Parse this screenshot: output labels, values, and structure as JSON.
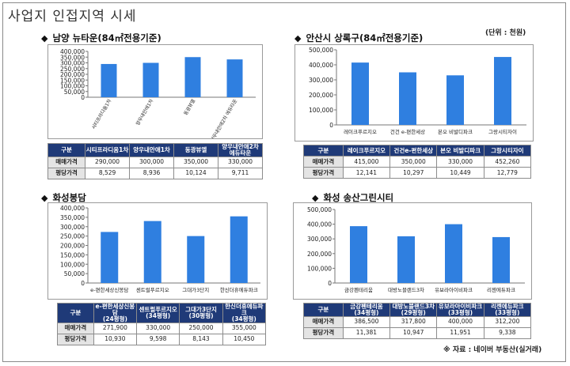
{
  "page": {
    "title": "사업지 인접지역 시세",
    "unit_note": "(단위 : 천원)",
    "source_note": "※ 자료 : 네이버 부동산(실거래)",
    "bar_color": "#2f7fe0",
    "header_color": "#1f3a78"
  },
  "chart_data": [
    {
      "type": "bar",
      "title": "남양 뉴타운(84㎡전용기준)",
      "categories": [
        "시티프라디움1차",
        "양우내안애1차",
        "동광뷰엘",
        "양우내안애2차 에듀타운"
      ],
      "values": [
        290000,
        300000,
        350000,
        330000
      ],
      "ylim": [
        0,
        400000
      ],
      "yticks": [
        "0",
        "50,000",
        "100,000",
        "150,000",
        "200,000",
        "250,000",
        "300,000",
        "350,000",
        "400,000"
      ],
      "grid": false,
      "legend": "none",
      "table": {
        "header": "구분",
        "columns": [
          "시티프라디움1차",
          "양우내안애1차",
          "동광뷰엘",
          "양우내안애2차\n에듀타운"
        ],
        "rows": [
          {
            "label": "매매가격",
            "values": [
              "290,000",
              "300,000",
              "350,000",
              "330,000"
            ]
          },
          {
            "label": "평당가격",
            "values": [
              "8,529",
              "8,936",
              "10,124",
              "9,711"
            ]
          }
        ]
      }
    },
    {
      "type": "bar",
      "title": "안산시 상록구(84㎡전용기준)",
      "categories": [
        "레이크푸르지오",
        "건건 e-편한세상",
        "본오 비발디파크",
        "그랑시티자이"
      ],
      "values": [
        415000,
        350000,
        330000,
        452260
      ],
      "ylim": [
        0,
        500000
      ],
      "yticks": [
        "0",
        "100,000",
        "200,000",
        "300,000",
        "400,000",
        "500,000"
      ],
      "grid": false,
      "legend": "none",
      "table": {
        "header": "구분",
        "columns": [
          "레이크푸르지오",
          "건건e-편한세상",
          "본오 비발디파크",
          "그랑시티자이"
        ],
        "rows": [
          {
            "label": "매매가격",
            "values": [
              "415,000",
              "350,000",
              "330,000",
              "452,260"
            ]
          },
          {
            "label": "평당가격",
            "values": [
              "12,141",
              "10,297",
              "10,449",
              "12,779"
            ]
          }
        ]
      }
    },
    {
      "type": "bar",
      "title": "화성봉담",
      "categories": [
        "e-편한세상신봉담",
        "센트럴푸르지오",
        "그대가3단지",
        "한신더휴에듀파크"
      ],
      "values": [
        271900,
        330000,
        250000,
        355000
      ],
      "ylim": [
        0,
        400000
      ],
      "yticks": [
        "0",
        "50,000",
        "100,000",
        "150,000",
        "200,000",
        "250,000",
        "300,000",
        "350,000",
        "400,000"
      ],
      "grid": false,
      "legend": "none",
      "table": {
        "header": "구분",
        "columns": [
          "e-편한세상신봉담\n(24평형)",
          "센트럴푸르지오\n(34평형)",
          "그대가3단지\n(30평형)",
          "한신더휴에듀파크\n(34평형)"
        ],
        "rows": [
          {
            "label": "매매가격",
            "values": [
              "271,900",
              "330,000",
              "250,000",
              "355,000"
            ]
          },
          {
            "label": "평당가격",
            "values": [
              "10,930",
              "9,598",
              "8,143",
              "10,450"
            ]
          }
        ]
      }
    },
    {
      "type": "bar",
      "title": "화성 송산그린시티",
      "categories": [
        "금강펜테리움",
        "대방노블랜드3차",
        "유보라아이비파크",
        "리젠에듀파크"
      ],
      "values": [
        386500,
        317800,
        400000,
        312200
      ],
      "ylim": [
        0,
        500000
      ],
      "yticks": [
        "0",
        "100,000",
        "200,000",
        "300,000",
        "400,000",
        "500,000"
      ],
      "grid": false,
      "legend": "none",
      "table": {
        "header": "구분",
        "columns": [
          "금강펜테리움\n(34평형)",
          "대방노블랜드3차\n(29평형)",
          "유보라아이비파크\n(33평형)",
          "리젠에듀파크\n(33평형)"
        ],
        "rows": [
          {
            "label": "매매가격",
            "values": [
              "386,500",
              "317,800",
              "400,000",
              "312,200"
            ]
          },
          {
            "label": "평당가격",
            "values": [
              "11,381",
              "10,947",
              "11,951",
              "9,338"
            ]
          }
        ]
      }
    }
  ]
}
